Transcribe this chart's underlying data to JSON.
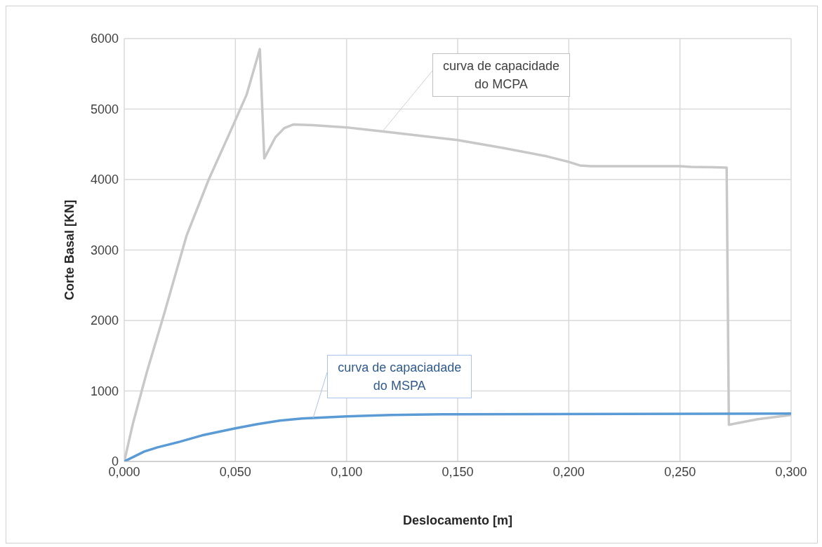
{
  "chart_data": {
    "type": "line",
    "xlabel": "Deslocamento [m]",
    "ylabel": "Corte Basal [KN]",
    "xlim": [
      0,
      0.3
    ],
    "xticks": [
      {
        "value": 0,
        "label": "0,000"
      },
      {
        "value": 0.05,
        "label": "0,050"
      },
      {
        "value": 0.1,
        "label": "0,100"
      },
      {
        "value": 0.15,
        "label": "0,150"
      },
      {
        "value": 0.2,
        "label": "0,200"
      },
      {
        "value": 0.25,
        "label": "0,250"
      },
      {
        "value": 0.3,
        "label": "0,300"
      }
    ],
    "ylim": [
      0,
      6000
    ],
    "yticks": [
      0,
      1000,
      2000,
      3000,
      4000,
      5000,
      6000
    ],
    "grid": true,
    "legend": false,
    "marker": "none",
    "line_style": "solid",
    "series": [
      {
        "color": "#c8c8c8",
        "x": [
          0,
          0.004,
          0.01,
          0.018,
          0.028,
          0.038,
          0.048,
          0.055,
          0.061,
          0.063,
          0.068,
          0.072,
          0.076,
          0.085,
          0.1,
          0.12,
          0.15,
          0.17,
          0.19,
          0.2,
          0.205,
          0.21,
          0.25,
          0.255,
          0.271,
          0.272,
          0.285,
          0.3
        ],
        "values": [
          0,
          550,
          1250,
          2100,
          3200,
          4000,
          4700,
          5200,
          5850,
          4300,
          4600,
          4730,
          4780,
          4770,
          4740,
          4670,
          4560,
          4450,
          4330,
          4250,
          4200,
          4190,
          4190,
          4180,
          4170,
          520,
          600,
          660
        ]
      },
      {
        "color": "#5b9bd5",
        "x": [
          0,
          0.009,
          0.015,
          0.025,
          0.035,
          0.05,
          0.06,
          0.07,
          0.08,
          0.1,
          0.12,
          0.143,
          0.15,
          0.3
        ],
        "values": [
          0,
          140,
          200,
          280,
          370,
          470,
          530,
          580,
          610,
          640,
          660,
          670,
          670,
          680
        ]
      }
    ],
    "annotations": [
      {
        "text": "curva de capacidade\ndo MCPA",
        "x": 0.1165,
        "y": 4700
      },
      {
        "text": "curva de capaciadade\ndo MSPA",
        "x": 0.085,
        "y": 620
      }
    ]
  }
}
